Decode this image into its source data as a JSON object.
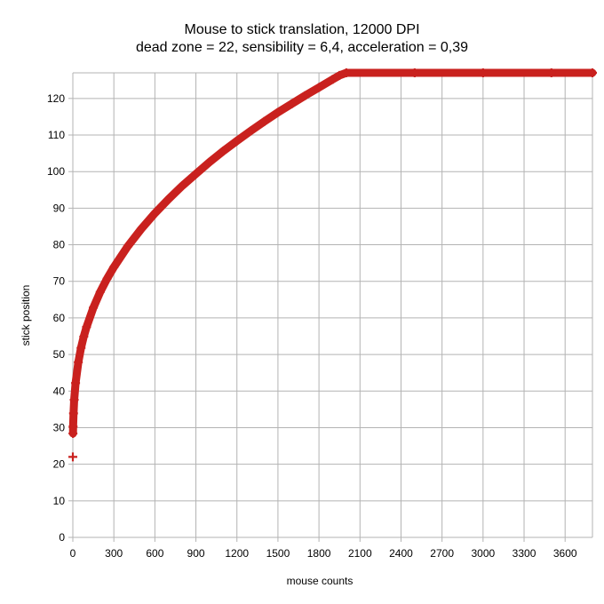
{
  "chart_data": {
    "type": "scatter",
    "title": "Mouse to stick translation, 12000 DPI",
    "subtitle": "dead zone = 22, sensibility = 6,4, acceleration = 0,39",
    "xlabel": "mouse counts",
    "ylabel": "stick position",
    "xlim": [
      0,
      3800
    ],
    "ylim": [
      0,
      127
    ],
    "x_ticks": [
      0,
      300,
      600,
      900,
      1200,
      1500,
      1800,
      2100,
      2400,
      2700,
      3000,
      3300,
      3600
    ],
    "y_ticks": [
      0,
      10,
      20,
      30,
      40,
      50,
      60,
      70,
      80,
      90,
      100,
      110,
      120
    ],
    "grid": true,
    "legend": "none",
    "marker": "plus",
    "series_color": "#c9211e",
    "series": [
      {
        "points": [
          [
            0,
            22
          ],
          [
            1,
            28.4
          ],
          [
            2,
            30.3
          ],
          [
            5,
            33.9
          ],
          [
            10,
            37.6
          ],
          [
            20,
            42.2
          ],
          [
            40,
            47.9
          ],
          [
            60,
            51.8
          ],
          [
            80,
            54.9
          ],
          [
            100,
            57.5
          ],
          [
            150,
            62.8
          ],
          [
            200,
            67.1
          ],
          [
            250,
            70.7
          ],
          [
            300,
            73.9
          ],
          [
            400,
            79.5
          ],
          [
            500,
            84.3
          ],
          [
            600,
            88.6
          ],
          [
            700,
            92.5
          ],
          [
            800,
            96.1
          ],
          [
            900,
            99.4
          ],
          [
            1000,
            102.6
          ],
          [
            1100,
            105.6
          ],
          [
            1200,
            108.4
          ],
          [
            1300,
            111.1
          ],
          [
            1400,
            113.7
          ],
          [
            1500,
            116.2
          ],
          [
            1600,
            118.5
          ],
          [
            1700,
            120.8
          ],
          [
            1800,
            123.0
          ],
          [
            1900,
            125.2
          ],
          [
            1950,
            126.3
          ],
          [
            2000,
            127
          ],
          [
            2500,
            127
          ],
          [
            3000,
            127
          ],
          [
            3500,
            127
          ],
          [
            3800,
            127
          ]
        ]
      }
    ]
  }
}
